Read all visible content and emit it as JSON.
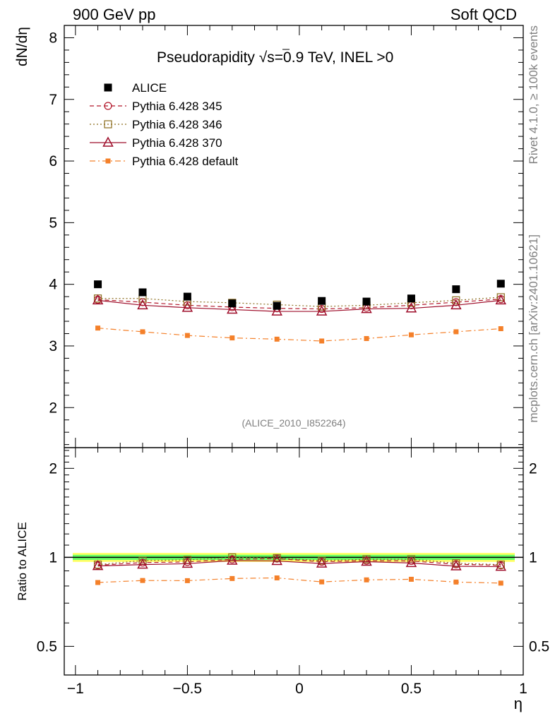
{
  "header": {
    "left": "900 GeV pp",
    "right": "Soft QCD"
  },
  "side_text": {
    "top": "Rivet 4.1.0, ≥ 100k events",
    "bottom": "mcplots.cern.ch [arXiv:2401.10621]"
  },
  "colors": {
    "data": "#000000",
    "p345": "#b2182b",
    "p346": "#8c6d1f",
    "p370": "#9e0d2a",
    "pdefault": "#f4802a",
    "band_inner": "#66ff66",
    "band_outer": "#ffff66"
  },
  "chart_data": {
    "type": "line",
    "title": "Pseudorapidity √s=0.9 TeV, INEL >0",
    "title_parts": {
      "pre": "Pseudorapidity ",
      "sqrt": "√",
      "s": "s",
      "post": "=0.9 TeV, INEL >0"
    },
    "watermark": "(ALICE_2010_I852264)",
    "xlabel": "η",
    "ylabel": "dN/dη",
    "ratio_ylabel": "Ratio to ALICE",
    "xlim": [
      -1.05,
      1.0
    ],
    "ylim": [
      1.35,
      8.2
    ],
    "ratio_ylim": [
      0.4,
      2.35
    ],
    "x_ticks": [
      -1,
      -0.5,
      0,
      0.5,
      1
    ],
    "x_tick_labels": [
      "−1",
      "−0.5",
      "0",
      "0.5",
      "1"
    ],
    "y_ticks": [
      2,
      3,
      4,
      5,
      6,
      7,
      8
    ],
    "y_tick_labels": [
      "2",
      "3",
      "4",
      "5",
      "6",
      "7",
      "8"
    ],
    "ratio_ticks": [
      0.5,
      1,
      2
    ],
    "ratio_tick_labels": [
      "0.5",
      "1",
      "2"
    ],
    "x": [
      -0.9,
      -0.7,
      -0.5,
      -0.3,
      -0.1,
      0.1,
      0.3,
      0.5,
      0.7,
      0.9
    ],
    "series": [
      {
        "key": "data",
        "name": "ALICE",
        "marker": "square-filled",
        "line": "none",
        "values": [
          4.0,
          3.87,
          3.8,
          3.69,
          3.65,
          3.73,
          3.72,
          3.77,
          3.92,
          4.01
        ],
        "ratio": [
          1,
          1,
          1,
          1,
          1,
          1,
          1,
          1,
          1,
          1
        ]
      },
      {
        "key": "p345",
        "name": "Pythia 6.428 345",
        "marker": "circle-open",
        "line": "dashed",
        "values": [
          3.75,
          3.71,
          3.66,
          3.63,
          3.61,
          3.6,
          3.62,
          3.66,
          3.71,
          3.76
        ],
        "ratio": [
          0.94,
          0.96,
          0.965,
          0.985,
          0.99,
          0.966,
          0.975,
          0.972,
          0.947,
          0.94
        ]
      },
      {
        "key": "p346",
        "name": "Pythia 6.428 346",
        "marker": "square-open",
        "line": "dotted",
        "values": [
          3.77,
          3.77,
          3.72,
          3.7,
          3.67,
          3.64,
          3.66,
          3.7,
          3.74,
          3.79
        ],
        "ratio": [
          0.945,
          0.975,
          0.98,
          1.0,
          0.995,
          0.975,
          0.985,
          0.985,
          0.955,
          0.945
        ]
      },
      {
        "key": "p370",
        "name": "Pythia 6.428 370",
        "marker": "triangle-open",
        "line": "solid",
        "values": [
          3.74,
          3.66,
          3.62,
          3.59,
          3.56,
          3.56,
          3.6,
          3.61,
          3.66,
          3.74
        ],
        "ratio": [
          0.935,
          0.945,
          0.952,
          0.975,
          0.972,
          0.953,
          0.967,
          0.957,
          0.933,
          0.93
        ]
      },
      {
        "key": "pdefault",
        "name": "Pythia 6.428 default",
        "marker": "square-small-filled",
        "line": "dashdot",
        "values": [
          3.29,
          3.23,
          3.17,
          3.13,
          3.11,
          3.08,
          3.12,
          3.18,
          3.23,
          3.28
        ],
        "ratio": [
          0.822,
          0.835,
          0.834,
          0.848,
          0.852,
          0.826,
          0.839,
          0.843,
          0.825,
          0.818
        ]
      }
    ],
    "ratio_band": {
      "inner": 0.04,
      "outer": 0.07
    }
  }
}
